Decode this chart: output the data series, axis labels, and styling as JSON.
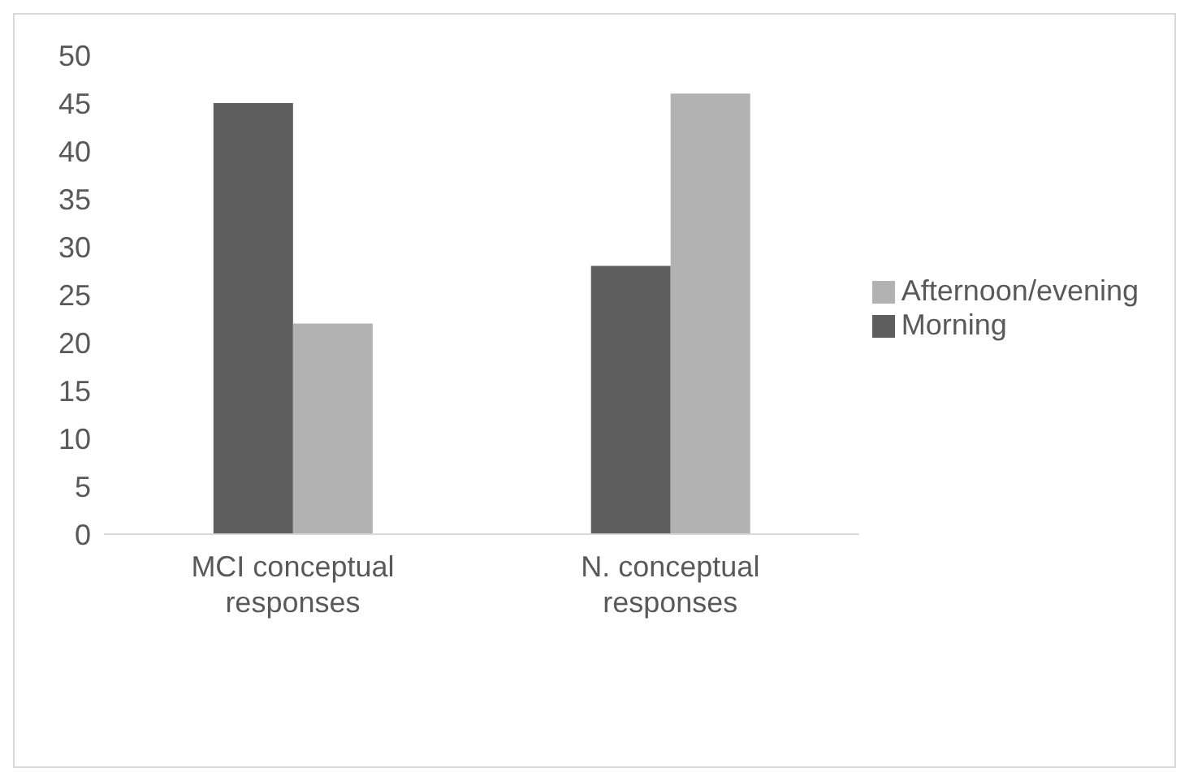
{
  "chart_data": {
    "type": "bar",
    "categories": [
      "MCI conceptual responses",
      "N. conceptual responses"
    ],
    "series": [
      {
        "name": "Morning",
        "color": "#5e5e5e",
        "values": [
          45,
          28
        ]
      },
      {
        "name": "Afternoon/evening",
        "color": "#b2b2b2",
        "values": [
          22,
          46
        ]
      }
    ],
    "ylim": [
      0,
      50
    ],
    "yticks": [
      0,
      5,
      10,
      15,
      20,
      25,
      30,
      35,
      40,
      45,
      50
    ],
    "grid": false,
    "legend": "right"
  }
}
